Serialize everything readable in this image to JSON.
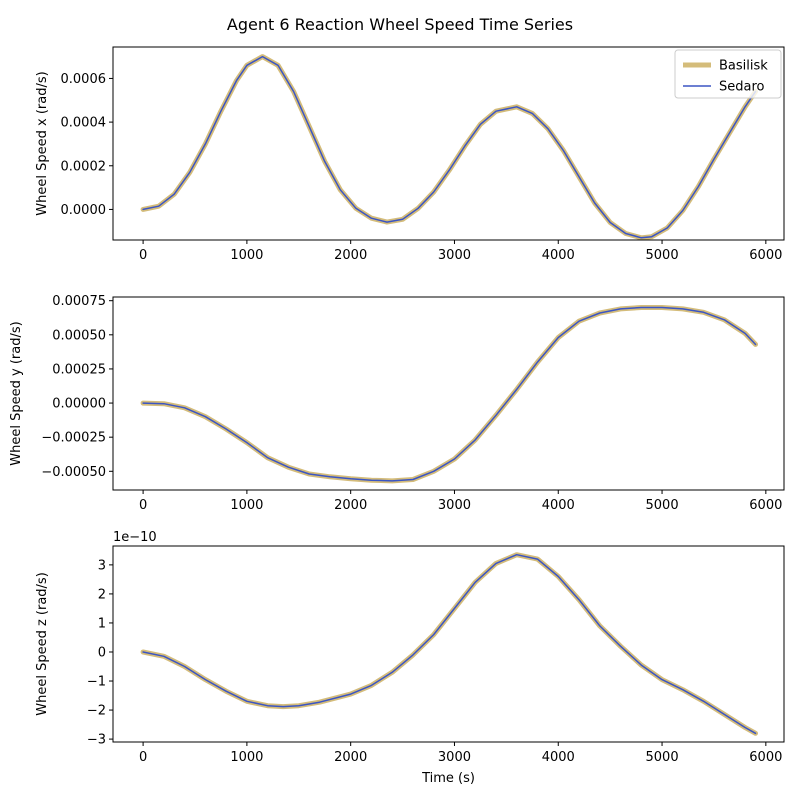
{
  "figure": {
    "title": "Agent 6 Reaction Wheel Speed Time Series"
  },
  "legend": {
    "placement": "top-right",
    "entries": [
      {
        "name": "Basilisk",
        "color": "#d4bc7a"
      },
      {
        "name": "Sedaro",
        "color": "#3b55c4"
      }
    ]
  },
  "chart_data": [
    {
      "type": "line",
      "xlabel": "",
      "ylabel": "Wheel Speed x (rad/s)",
      "offset_label": "",
      "xlim": [
        -290,
        6175
      ],
      "ylim": [
        -0.00014,
        0.000744
      ],
      "xticks": [
        0,
        1000,
        2000,
        3000,
        4000,
        5000,
        6000
      ],
      "yticks": [
        0,
        0.0002,
        0.0004,
        0.0006
      ],
      "ytick_labels": [
        "0.0000",
        "0.0002",
        "0.0004",
        "0.0006"
      ],
      "x": [
        0,
        150,
        300,
        450,
        600,
        750,
        900,
        1000,
        1150,
        1300,
        1450,
        1600,
        1750,
        1900,
        2050,
        2200,
        2350,
        2500,
        2650,
        2800,
        2950,
        3100,
        3250,
        3400,
        3600,
        3750,
        3900,
        4050,
        4200,
        4350,
        4500,
        4650,
        4800,
        4900,
        5050,
        5200,
        5350,
        5500,
        5650,
        5800,
        5900
      ],
      "series": [
        {
          "name": "Basilisk",
          "values": [
            0,
            1.5e-05,
            7e-05,
            0.00017,
            0.0003,
            0.00045,
            0.00059,
            0.00066,
            0.0007,
            0.00066,
            0.00054,
            0.00038,
            0.00022,
            9e-05,
            5e-06,
            -4e-05,
            -5.8e-05,
            -4.5e-05,
            5e-06,
            8e-05,
            0.00018,
            0.00029,
            0.00039,
            0.00045,
            0.00047,
            0.00044,
            0.00037,
            0.00027,
            0.00015,
            3e-05,
            -6e-05,
            -0.00011,
            -0.00013,
            -0.000125,
            -8.5e-05,
            -5e-06,
            0.000105,
            0.00023,
            0.00035,
            0.00047,
            0.00054
          ]
        },
        {
          "name": "Sedaro",
          "values": [
            0,
            1.5e-05,
            7e-05,
            0.00017,
            0.0003,
            0.00045,
            0.00059,
            0.00066,
            0.0007,
            0.00066,
            0.00054,
            0.00038,
            0.00022,
            9e-05,
            5e-06,
            -4e-05,
            -5.8e-05,
            -4.5e-05,
            5e-06,
            8e-05,
            0.00018,
            0.00029,
            0.00039,
            0.00045,
            0.00047,
            0.00044,
            0.00037,
            0.00027,
            0.00015,
            3e-05,
            -6e-05,
            -0.00011,
            -0.00013,
            -0.000125,
            -8.5e-05,
            -5e-06,
            0.000105,
            0.00023,
            0.00035,
            0.00047,
            0.00054
          ]
        }
      ]
    },
    {
      "type": "line",
      "xlabel": "",
      "ylabel": "Wheel Speed y (rad/s)",
      "offset_label": "",
      "xlim": [
        -290,
        6175
      ],
      "ylim": [
        -0.000637,
        0.000777
      ],
      "xticks": [
        0,
        1000,
        2000,
        3000,
        4000,
        5000,
        6000
      ],
      "yticks": [
        -0.0005,
        -0.00025,
        0,
        0.00025,
        0.0005,
        0.00075
      ],
      "ytick_labels": [
        "−0.00050",
        "−0.00025",
        "0.00000",
        "0.00025",
        "0.00050",
        "0.00075"
      ],
      "x": [
        0,
        200,
        400,
        600,
        800,
        1000,
        1200,
        1400,
        1600,
        1800,
        2000,
        2200,
        2400,
        2600,
        2800,
        3000,
        3200,
        3400,
        3600,
        3800,
        4000,
        4200,
        4400,
        4600,
        4800,
        5000,
        5200,
        5400,
        5600,
        5800,
        5900
      ],
      "series": [
        {
          "name": "Basilisk",
          "values": [
            0,
            -5e-06,
            -3.5e-05,
            -0.0001,
            -0.00019,
            -0.00029,
            -0.0004,
            -0.00047,
            -0.00052,
            -0.00054,
            -0.000555,
            -0.000565,
            -0.00057,
            -0.00056,
            -0.0005,
            -0.00041,
            -0.00027,
            -9e-05,
            0.0001,
            0.0003,
            0.00048,
            0.0006,
            0.00066,
            0.00069,
            0.0007,
            0.0007,
            0.00069,
            0.000665,
            0.00061,
            0.00051,
            0.00043
          ]
        },
        {
          "name": "Sedaro",
          "values": [
            0,
            -5e-06,
            -3.5e-05,
            -0.0001,
            -0.00019,
            -0.00029,
            -0.0004,
            -0.00047,
            -0.00052,
            -0.00054,
            -0.000555,
            -0.000565,
            -0.00057,
            -0.00056,
            -0.0005,
            -0.00041,
            -0.00027,
            -9e-05,
            0.0001,
            0.0003,
            0.00048,
            0.0006,
            0.00066,
            0.00069,
            0.0007,
            0.0007,
            0.00069,
            0.000665,
            0.00061,
            0.00051,
            0.00043
          ]
        }
      ]
    },
    {
      "type": "line",
      "xlabel": "Time (s)",
      "ylabel": "Wheel Speed z (rad/s)",
      "offset_label": "1e−10",
      "xlim": [
        -290,
        6175
      ],
      "ylim": [
        -3.1,
        3.65
      ],
      "xticks": [
        0,
        1000,
        2000,
        3000,
        4000,
        5000,
        6000
      ],
      "yticks": [
        -3,
        -2,
        -1,
        0,
        1,
        2,
        3
      ],
      "ytick_labels": [
        "−3",
        "−2",
        "−1",
        "0",
        "1",
        "2",
        "3"
      ],
      "x": [
        0,
        200,
        400,
        600,
        800,
        1000,
        1200,
        1350,
        1500,
        1700,
        2000,
        2200,
        2400,
        2600,
        2800,
        3000,
        3200,
        3400,
        3600,
        3800,
        4000,
        4200,
        4400,
        4600,
        4800,
        5000,
        5200,
        5400,
        5600,
        5800,
        5900
      ],
      "series": [
        {
          "name": "Basilisk",
          "values": [
            0,
            -0.15,
            -0.5,
            -0.95,
            -1.35,
            -1.7,
            -1.85,
            -1.88,
            -1.85,
            -1.73,
            -1.45,
            -1.15,
            -0.7,
            -0.1,
            0.6,
            1.5,
            2.4,
            3.05,
            3.35,
            3.2,
            2.6,
            1.8,
            0.9,
            0.2,
            -0.45,
            -0.95,
            -1.3,
            -1.7,
            -2.15,
            -2.6,
            -2.8
          ]
        },
        {
          "name": "Sedaro",
          "values": [
            0,
            -0.15,
            -0.5,
            -0.95,
            -1.35,
            -1.7,
            -1.85,
            -1.88,
            -1.85,
            -1.73,
            -1.45,
            -1.15,
            -0.7,
            -0.1,
            0.6,
            1.5,
            2.4,
            3.05,
            3.35,
            3.2,
            2.6,
            1.8,
            0.9,
            0.2,
            -0.45,
            -0.95,
            -1.3,
            -1.7,
            -2.15,
            -2.6,
            -2.8
          ]
        }
      ]
    }
  ]
}
